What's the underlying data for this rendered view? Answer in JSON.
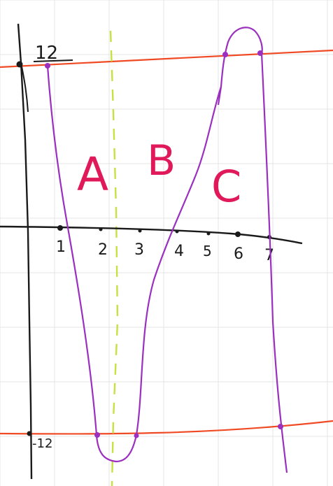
{
  "colors": {
    "grid": "#e6e6e6",
    "axis": "#1a1a1a",
    "curve": "#9b2fc0",
    "boundary_lines": "#f04a24",
    "dashed_line": "#c8e040",
    "region_labels": "#e0195a"
  },
  "axis": {
    "y_top_label": "12",
    "y_bottom_label": "-12",
    "x_ticks": [
      "1",
      "2",
      "3",
      "4",
      "5",
      "6",
      "7"
    ]
  },
  "regions": {
    "a": "A",
    "b": "B",
    "c": "C"
  }
}
